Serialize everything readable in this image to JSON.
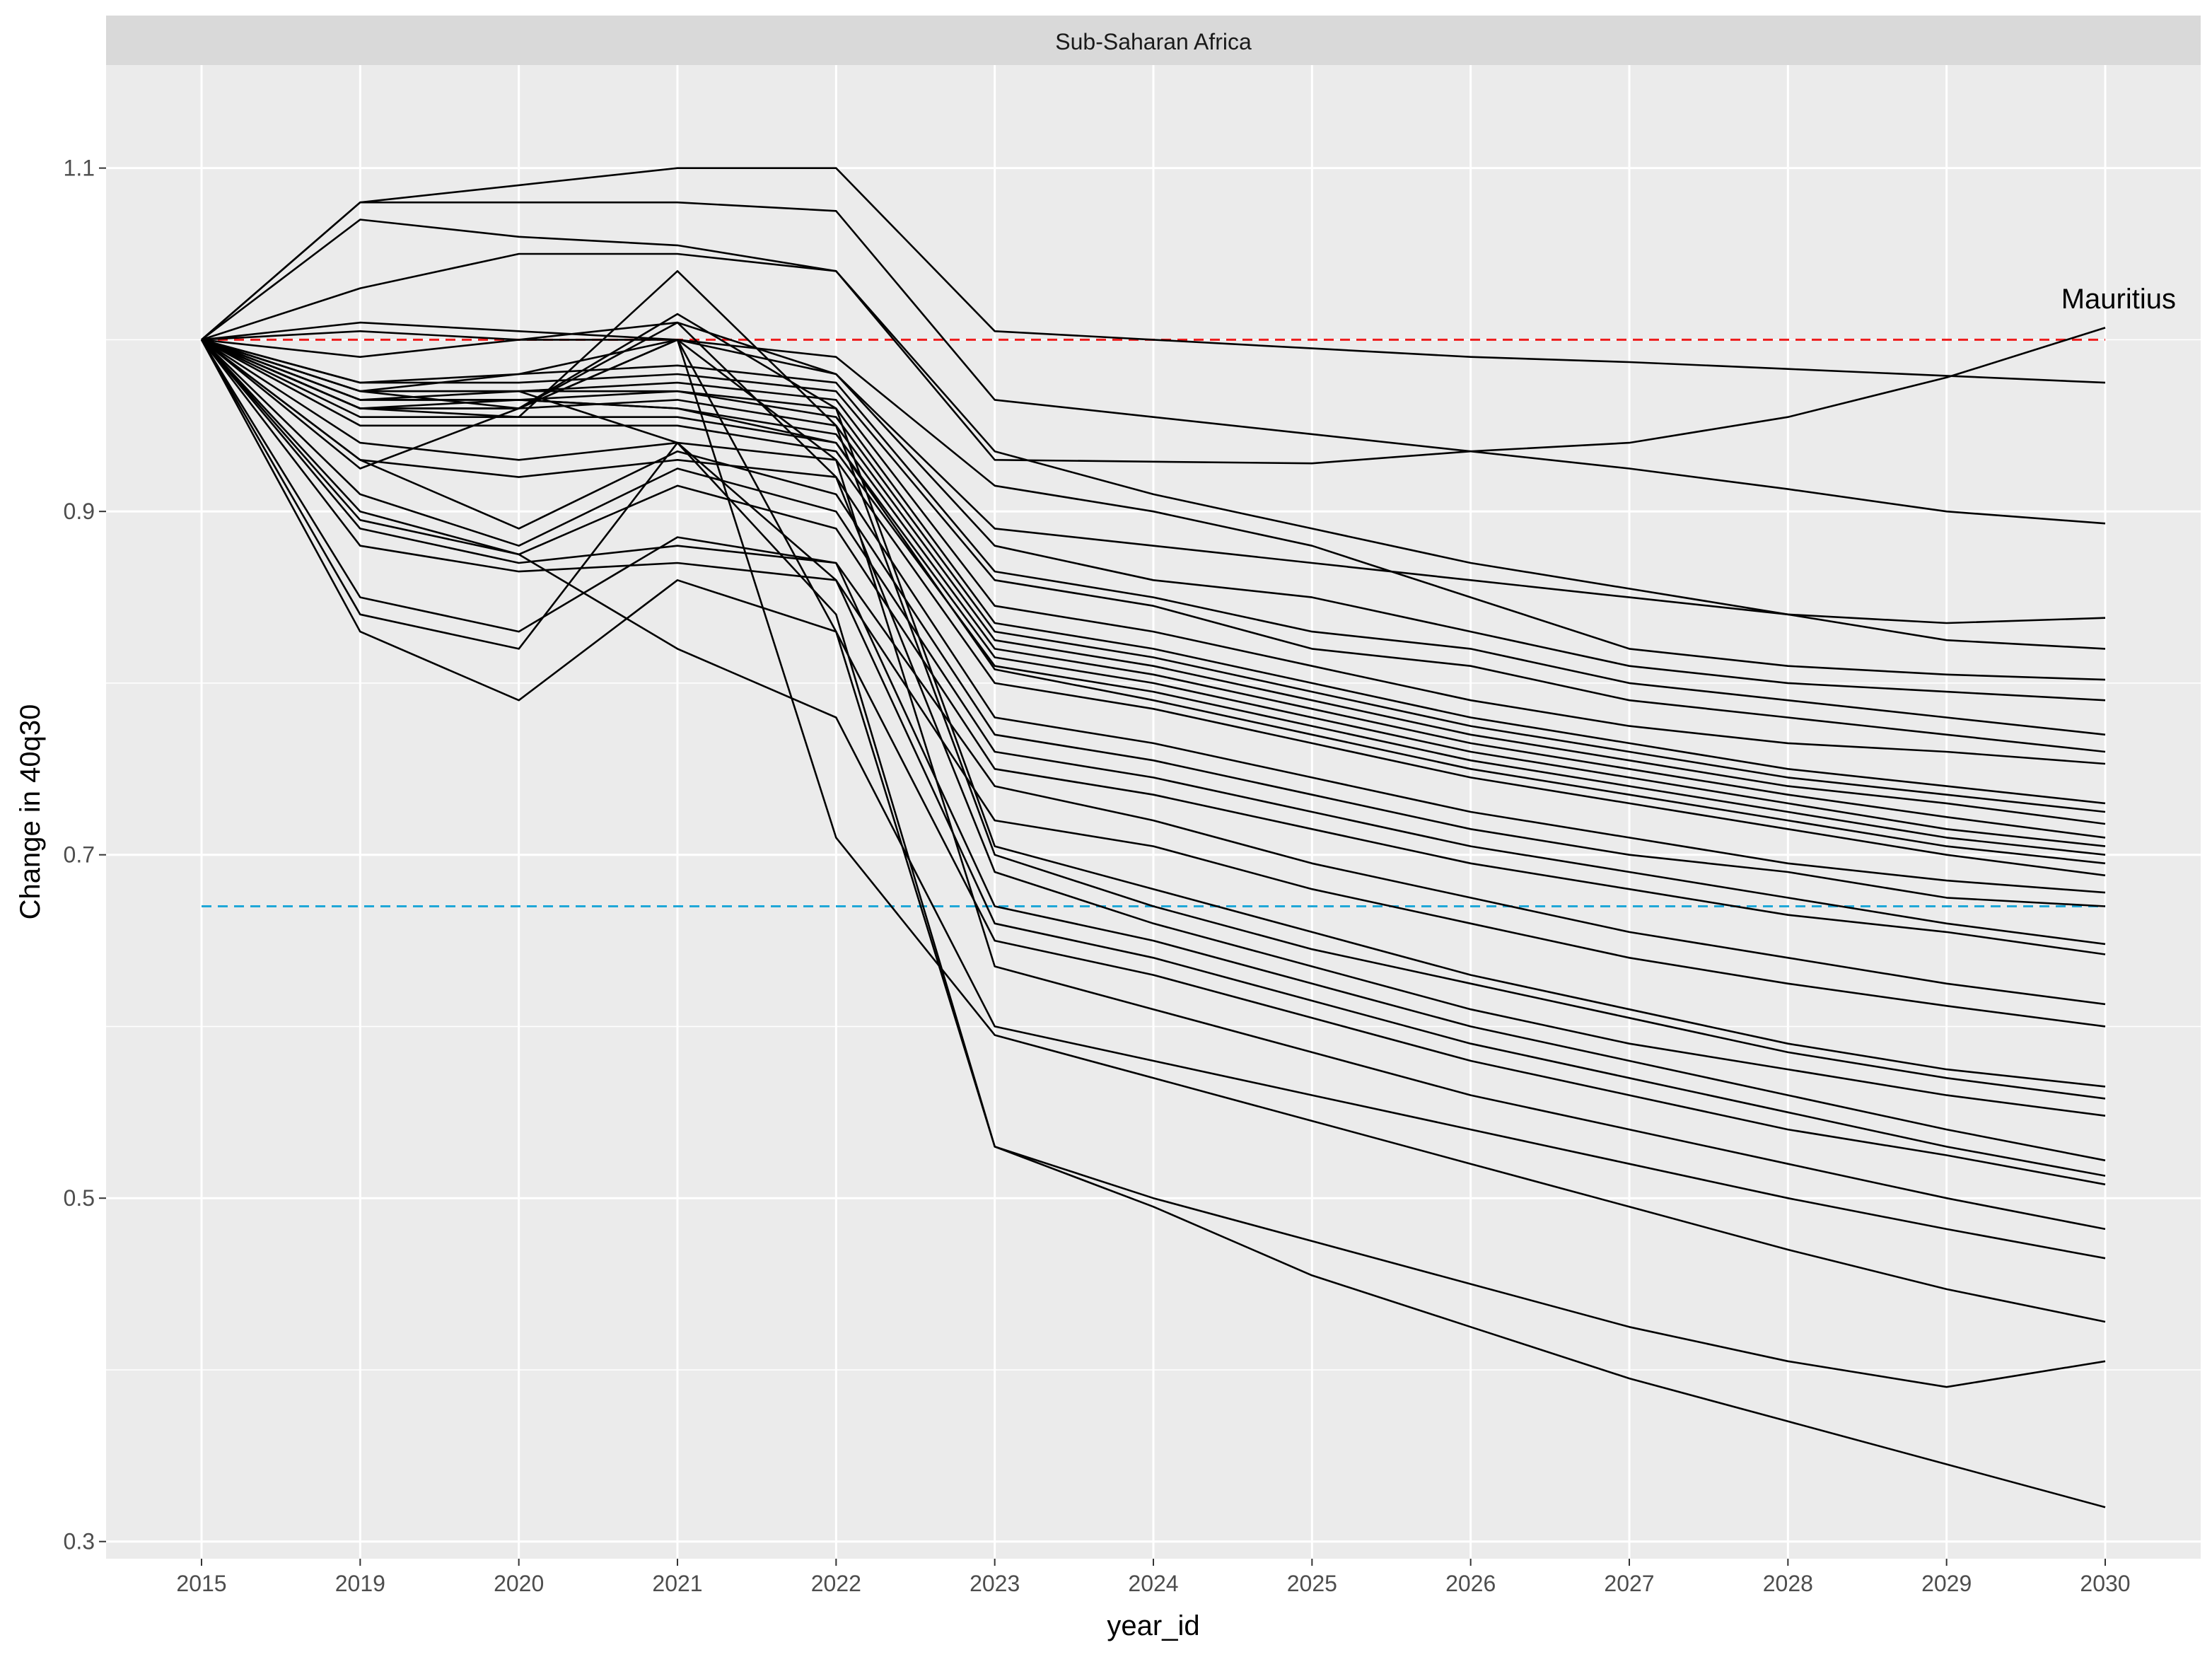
{
  "chart_data": {
    "type": "line",
    "facet_label": "Sub-Saharan Africa",
    "xlabel": "year_id",
    "ylabel": "Change in 40q30",
    "x": [
      "2015",
      "2019",
      "2020",
      "2021",
      "2022",
      "2023",
      "2024",
      "2025",
      "2026",
      "2027",
      "2028",
      "2029",
      "2030"
    ],
    "yticks": [
      0.3,
      0.5,
      0.7,
      0.9,
      1.1
    ],
    "ylim": [
      0.29,
      1.16
    ],
    "grid": true,
    "legend": "none",
    "reference_lines": [
      {
        "y": 1.0,
        "color": "#ee1c1c",
        "style": "dashed"
      },
      {
        "y": 0.67,
        "color": "#1fa7d8",
        "style": "dashed"
      }
    ],
    "annotations": [
      {
        "text": "Mauritius",
        "x": "2030",
        "y": 1.02
      }
    ],
    "series_color": "#000000",
    "series": [
      {
        "values": [
          1,
          1.08,
          1.09,
          1.1,
          1.1,
          1.005,
          1.0,
          0.995,
          0.99,
          0.987,
          0.983,
          0.979,
          0.975
        ]
      },
      {
        "values": [
          1,
          1.07,
          1.06,
          1.055,
          1.04,
          0.93,
          0.929,
          0.928,
          0.935,
          0.94,
          0.955,
          0.978,
          1.007
        ]
      },
      {
        "values": [
          1,
          1.08,
          1.08,
          1.08,
          1.075,
          0.965,
          0.955,
          0.945,
          0.935,
          0.925,
          0.913,
          0.9,
          0.893
        ]
      },
      {
        "values": [
          1,
          1.03,
          1.05,
          1.05,
          1.04,
          0.935,
          0.91,
          0.89,
          0.87,
          0.855,
          0.84,
          0.825,
          0.82
        ]
      },
      {
        "values": [
          1,
          1.01,
          1.005,
          1.0,
          0.99,
          0.915,
          0.9,
          0.88,
          0.85,
          0.82,
          0.81,
          0.805,
          0.802
        ]
      },
      {
        "values": [
          1,
          0.99,
          1.0,
          1.01,
          0.98,
          0.89,
          0.88,
          0.87,
          0.86,
          0.85,
          0.84,
          0.835,
          0.838
        ]
      },
      {
        "values": [
          1,
          1.005,
          1.0,
          1.0,
          0.98,
          0.88,
          0.86,
          0.85,
          0.83,
          0.81,
          0.8,
          0.795,
          0.79
        ]
      },
      {
        "values": [
          1,
          0.97,
          0.98,
          0.985,
          0.975,
          0.865,
          0.85,
          0.83,
          0.82,
          0.8,
          0.79,
          0.78,
          0.77
        ]
      },
      {
        "values": [
          1,
          0.975,
          0.975,
          0.98,
          0.97,
          0.86,
          0.845,
          0.82,
          0.81,
          0.79,
          0.78,
          0.77,
          0.76
        ]
      },
      {
        "values": [
          1,
          0.97,
          0.97,
          0.975,
          0.965,
          0.845,
          0.83,
          0.81,
          0.79,
          0.775,
          0.765,
          0.76,
          0.753
        ]
      },
      {
        "values": [
          1,
          0.965,
          0.965,
          0.97,
          0.96,
          0.835,
          0.82,
          0.8,
          0.78,
          0.765,
          0.75,
          0.74,
          0.73
        ]
      },
      {
        "values": [
          1,
          0.97,
          0.97,
          0.97,
          0.955,
          0.83,
          0.815,
          0.795,
          0.775,
          0.76,
          0.745,
          0.735,
          0.725
        ]
      },
      {
        "values": [
          1,
          0.96,
          0.96,
          0.965,
          0.95,
          0.825,
          0.81,
          0.79,
          0.77,
          0.755,
          0.74,
          0.73,
          0.718
        ]
      },
      {
        "values": [
          1,
          0.965,
          0.965,
          0.96,
          0.945,
          0.82,
          0.805,
          0.785,
          0.765,
          0.75,
          0.735,
          0.722,
          0.71
        ]
      },
      {
        "values": [
          1,
          0.955,
          0.955,
          0.955,
          0.94,
          0.815,
          0.8,
          0.78,
          0.76,
          0.745,
          0.73,
          0.715,
          0.705
        ]
      },
      {
        "values": [
          1,
          0.95,
          0.95,
          0.95,
          0.935,
          0.81,
          0.795,
          0.775,
          0.755,
          0.74,
          0.725,
          0.71,
          0.7
        ]
      },
      {
        "values": [
          1,
          0.96,
          0.965,
          0.96,
          0.94,
          0.808,
          0.79,
          0.77,
          0.75,
          0.735,
          0.72,
          0.705,
          0.695
        ]
      },
      {
        "values": [
          1,
          0.94,
          0.93,
          0.94,
          0.93,
          0.8,
          0.785,
          0.765,
          0.745,
          0.73,
          0.715,
          0.7,
          0.688
        ]
      },
      {
        "values": [
          1,
          0.93,
          0.92,
          0.93,
          0.92,
          0.78,
          0.765,
          0.745,
          0.725,
          0.71,
          0.695,
          0.685,
          0.678
        ]
      },
      {
        "values": [
          1,
          0.93,
          0.89,
          0.935,
          0.91,
          0.77,
          0.755,
          0.735,
          0.715,
          0.7,
          0.69,
          0.675,
          0.67
        ]
      },
      {
        "values": [
          1,
          0.91,
          0.88,
          0.925,
          0.9,
          0.76,
          0.745,
          0.725,
          0.705,
          0.69,
          0.675,
          0.66,
          0.648
        ]
      },
      {
        "values": [
          1,
          0.895,
          0.875,
          0.915,
          0.89,
          0.75,
          0.735,
          0.715,
          0.695,
          0.68,
          0.665,
          0.655,
          0.642
        ]
      },
      {
        "values": [
          1,
          0.89,
          0.87,
          0.88,
          0.87,
          0.74,
          0.72,
          0.695,
          0.675,
          0.655,
          0.64,
          0.625,
          0.613
        ]
      },
      {
        "values": [
          1,
          0.88,
          0.865,
          0.87,
          0.86,
          0.72,
          0.705,
          0.68,
          0.66,
          0.64,
          0.625,
          0.612,
          0.6
        ]
      },
      {
        "values": [
          1,
          0.97,
          0.96,
          1.015,
          0.96,
          0.705,
          0.68,
          0.655,
          0.63,
          0.61,
          0.59,
          0.575,
          0.565
        ]
      },
      {
        "values": [
          1,
          0.96,
          0.955,
          1.04,
          0.95,
          0.7,
          0.67,
          0.645,
          0.625,
          0.605,
          0.585,
          0.57,
          0.558
        ]
      },
      {
        "values": [
          1,
          0.925,
          0.96,
          1.01,
          0.92,
          0.69,
          0.66,
          0.635,
          0.61,
          0.59,
          0.575,
          0.56,
          0.548
        ]
      },
      {
        "values": [
          1,
          0.85,
          0.83,
          0.885,
          0.87,
          0.67,
          0.65,
          0.625,
          0.6,
          0.58,
          0.56,
          0.54,
          0.522
        ]
      },
      {
        "values": [
          1,
          0.84,
          0.82,
          0.94,
          0.86,
          0.66,
          0.64,
          0.615,
          0.59,
          0.57,
          0.55,
          0.53,
          0.513
        ]
      },
      {
        "values": [
          1,
          0.83,
          0.79,
          0.86,
          0.83,
          0.65,
          0.63,
          0.605,
          0.58,
          0.56,
          0.54,
          0.525,
          0.508
        ]
      },
      {
        "values": [
          1,
          0.96,
          0.96,
          1.0,
          0.93,
          0.635,
          0.61,
          0.585,
          0.56,
          0.54,
          0.52,
          0.5,
          0.482
        ]
      },
      {
        "values": [
          1,
          0.9,
          0.875,
          0.82,
          0.78,
          0.6,
          0.58,
          0.56,
          0.54,
          0.52,
          0.5,
          0.482,
          0.465
        ]
      },
      {
        "values": [
          1,
          0.975,
          0.98,
          1.0,
          0.71,
          0.595,
          0.57,
          0.545,
          0.52,
          0.495,
          0.47,
          0.447,
          0.428
        ]
      },
      {
        "values": [
          1,
          0.965,
          0.97,
          0.94,
          0.84,
          0.53,
          0.5,
          0.475,
          0.45,
          0.425,
          0.405,
          0.39,
          0.405
        ]
      },
      {
        "values": [
          1,
          0.96,
          0.96,
          1.0,
          0.83,
          0.53,
          0.495,
          0.455,
          0.425,
          0.395,
          0.37,
          0.345,
          0.32
        ]
      }
    ]
  }
}
